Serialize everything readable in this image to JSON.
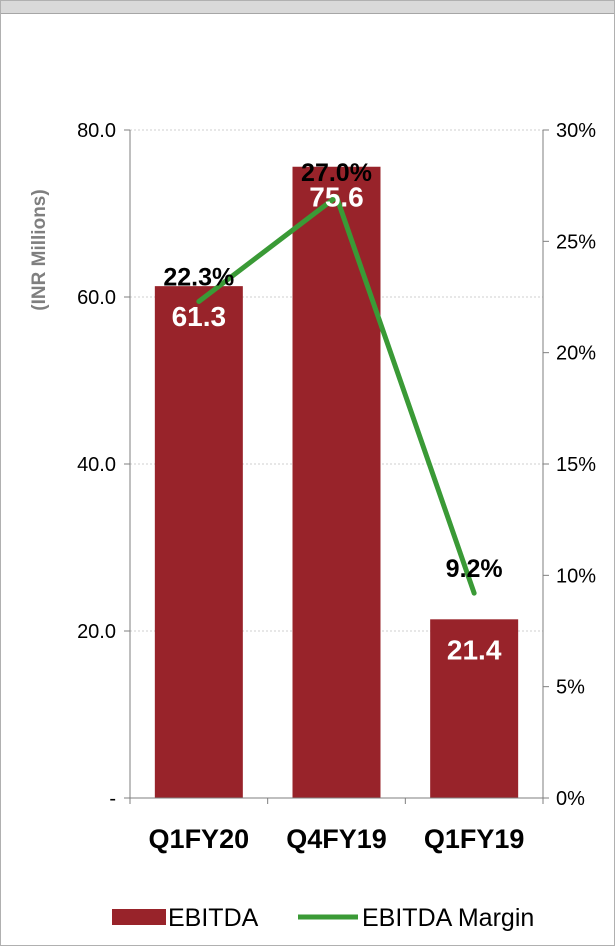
{
  "chart_data": {
    "type": "bar",
    "categories": [
      "Q1FY20",
      "Q4FY19",
      "Q1FY19"
    ],
    "series": [
      {
        "name": "EBITDA",
        "type": "bar",
        "axis": "left",
        "values": [
          61.3,
          75.6,
          21.4
        ],
        "color": "#98232a",
        "value_labels": [
          "61.3",
          "75.6",
          "21.4"
        ]
      },
      {
        "name": "EBITDA Margin",
        "type": "line",
        "axis": "right",
        "values": [
          22.3,
          27.0,
          9.2
        ],
        "color": "#3a9a36",
        "value_labels": [
          "22.3%",
          "27.0%",
          "9.2%"
        ]
      }
    ],
    "ylabel": "(INR Millions)",
    "ylim": [
      0,
      80
    ],
    "y_ticks": [
      0,
      20,
      40,
      60,
      80
    ],
    "y_tick_labels": [
      "-",
      "20.0",
      "40.0",
      "60.0",
      "80.0"
    ],
    "y2lim": [
      0,
      30
    ],
    "y2_ticks": [
      0,
      5,
      10,
      15,
      20,
      25,
      30
    ],
    "y2_tick_labels": [
      "0%",
      "5%",
      "10%",
      "15%",
      "20%",
      "25%",
      "30%"
    ],
    "grid": true,
    "legend": {
      "position": "bottom",
      "entries": [
        {
          "label": "EBITDA",
          "symbol": "bar",
          "color": "#98232a"
        },
        {
          "label": "EBITDA Margin",
          "symbol": "line",
          "color": "#3a9a36"
        }
      ]
    }
  }
}
